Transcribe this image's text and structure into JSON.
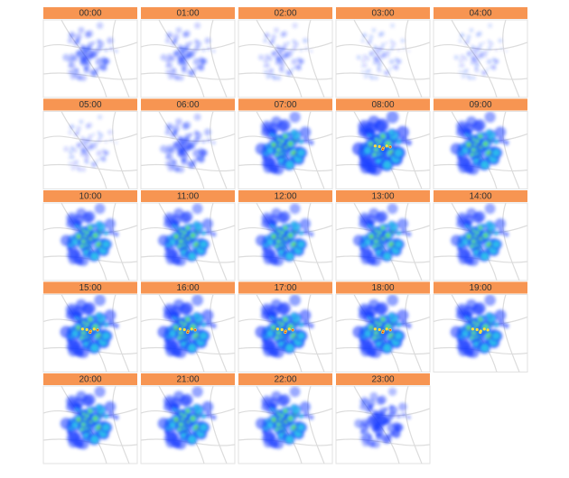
{
  "panels": [
    {
      "label": "00:00"
    },
    {
      "label": "01:00"
    },
    {
      "label": "02:00"
    },
    {
      "label": "03:00"
    },
    {
      "label": "04:00"
    },
    {
      "label": "05:00"
    },
    {
      "label": "06:00"
    },
    {
      "label": "07:00"
    },
    {
      "label": "08:00"
    },
    {
      "label": "09:00"
    },
    {
      "label": "10:00"
    },
    {
      "label": "11:00"
    },
    {
      "label": "12:00"
    },
    {
      "label": "13:00"
    },
    {
      "label": "14:00"
    },
    {
      "label": "15:00"
    },
    {
      "label": "16:00"
    },
    {
      "label": "17:00"
    },
    {
      "label": "18:00"
    },
    {
      "label": "19:00"
    },
    {
      "label": "20:00"
    },
    {
      "label": "21:00"
    },
    {
      "label": "22:00"
    },
    {
      "label": "23:00"
    }
  ]
}
